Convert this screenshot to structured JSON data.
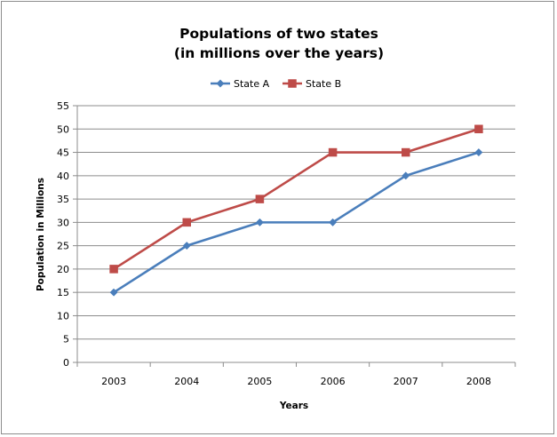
{
  "chart_data": {
    "type": "line",
    "title_line1": "Populations of two states",
    "title_line2": "(in millions over the years)",
    "xlabel": "Years",
    "ylabel": "Population in Millions",
    "categories": [
      "2003",
      "2004",
      "2005",
      "2006",
      "2007",
      "2008"
    ],
    "ylim": [
      0,
      55
    ],
    "ystep": 5,
    "grid": true,
    "legend_position": "top",
    "series": [
      {
        "name": "State A",
        "values": [
          15,
          25,
          30,
          30,
          40,
          45
        ],
        "color": "#4a7ebb",
        "marker": "diamond"
      },
      {
        "name": "State B",
        "values": [
          20,
          30,
          35,
          45,
          45,
          50
        ],
        "color": "#be4b48",
        "marker": "square"
      }
    ]
  }
}
